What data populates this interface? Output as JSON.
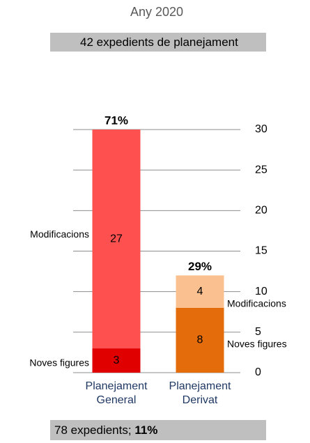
{
  "chart_data": {
    "type": "stacked_bar",
    "title": "Any 2020",
    "subtitle": "42 expedients de  planejament",
    "categories": [
      "Planejament General",
      "Planejament Derivat"
    ],
    "series": [
      {
        "name": "Noves figures",
        "colors": [
          "#e00000",
          "#e46c0a"
        ],
        "values": [
          3,
          8
        ]
      },
      {
        "name": "Modificacions",
        "colors": [
          "#ff5050",
          "#fac090"
        ],
        "values": [
          27,
          4
        ]
      }
    ],
    "annotations": [
      "71%",
      "29%"
    ],
    "ylim": [
      0,
      30
    ],
    "yticks": [
      0,
      5,
      10,
      15,
      20,
      25,
      30
    ],
    "grid": true,
    "footer": {
      "text": "78 expedients;",
      "bold": "11%"
    }
  }
}
